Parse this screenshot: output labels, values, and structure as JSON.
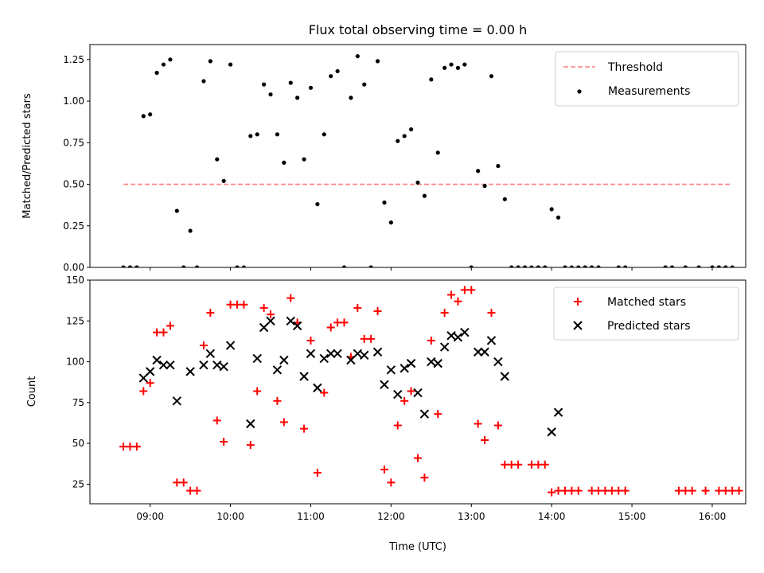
{
  "title": "Flux total observing time = 0.00 h",
  "chart_data": [
    {
      "type": "scatter",
      "title": "Flux total observing time = 0.00 h",
      "xlabel": "",
      "ylabel": "Matched/Predicted stars",
      "ylim": [
        0,
        1.34
      ],
      "yticks": [
        "0.00",
        "0.25",
        "0.50",
        "0.75",
        "1.00",
        "1.25"
      ],
      "threshold": {
        "name": "Threshold",
        "value": 0.5,
        "x_start": "08:40",
        "x_end": "16:15",
        "color": "#ff7f7f"
      },
      "legend": "top-right",
      "series": [
        {
          "name": "Measurements",
          "color": "#000000",
          "points": [
            [
              "08:40",
              0
            ],
            [
              "08:45",
              0
            ],
            [
              "08:50",
              0
            ],
            [
              "08:55",
              0.91
            ],
            [
              "09:00",
              0.92
            ],
            [
              "09:05",
              1.17
            ],
            [
              "09:10",
              1.22
            ],
            [
              "09:15",
              1.25
            ],
            [
              "09:20",
              0.34
            ],
            [
              "09:25",
              0
            ],
            [
              "09:30",
              0.22
            ],
            [
              "09:35",
              0
            ],
            [
              "09:40",
              1.12
            ],
            [
              "09:45",
              1.24
            ],
            [
              "09:50",
              0.65
            ],
            [
              "09:55",
              0.52
            ],
            [
              "10:00",
              1.22
            ],
            [
              "10:05",
              0
            ],
            [
              "10:10",
              0
            ],
            [
              "10:15",
              0.79
            ],
            [
              "10:20",
              0.8
            ],
            [
              "10:25",
              1.1
            ],
            [
              "10:30",
              1.04
            ],
            [
              "10:35",
              0.8
            ],
            [
              "10:40",
              0.63
            ],
            [
              "10:45",
              1.11
            ],
            [
              "10:50",
              1.02
            ],
            [
              "10:55",
              0.65
            ],
            [
              "11:00",
              1.08
            ],
            [
              "11:05",
              0.38
            ],
            [
              "11:10",
              0.8
            ],
            [
              "11:15",
              1.15
            ],
            [
              "11:20",
              1.18
            ],
            [
              "11:25",
              0
            ],
            [
              "11:30",
              1.02
            ],
            [
              "11:35",
              1.27
            ],
            [
              "11:40",
              1.1
            ],
            [
              "11:45",
              0
            ],
            [
              "11:50",
              1.24
            ],
            [
              "11:55",
              0.39
            ],
            [
              "12:00",
              0.27
            ],
            [
              "12:05",
              0.76
            ],
            [
              "12:10",
              0.79
            ],
            [
              "12:15",
              0.83
            ],
            [
              "12:20",
              0.51
            ],
            [
              "12:25",
              0.43
            ],
            [
              "12:30",
              1.13
            ],
            [
              "12:35",
              0.69
            ],
            [
              "12:40",
              1.2
            ],
            [
              "12:45",
              1.22
            ],
            [
              "12:50",
              1.2
            ],
            [
              "12:55",
              1.22
            ],
            [
              "13:00",
              0
            ],
            [
              "13:05",
              0.58
            ],
            [
              "13:10",
              0.49
            ],
            [
              "13:15",
              1.15
            ],
            [
              "13:20",
              0.61
            ],
            [
              "13:25",
              0.41
            ],
            [
              "13:30",
              0
            ],
            [
              "13:35",
              0
            ],
            [
              "13:40",
              0
            ],
            [
              "13:45",
              0
            ],
            [
              "13:50",
              0
            ],
            [
              "13:55",
              0
            ],
            [
              "14:00",
              0.35
            ],
            [
              "14:05",
              0.3
            ],
            [
              "14:10",
              0
            ],
            [
              "14:15",
              0
            ],
            [
              "14:20",
              0
            ],
            [
              "14:25",
              0
            ],
            [
              "14:30",
              0
            ],
            [
              "14:35",
              0
            ],
            [
              "14:50",
              0
            ],
            [
              "14:55",
              0
            ],
            [
              "15:25",
              0
            ],
            [
              "15:30",
              0
            ],
            [
              "15:40",
              0
            ],
            [
              "15:50",
              0
            ],
            [
              "16:00",
              0
            ],
            [
              "16:05",
              0
            ],
            [
              "16:10",
              0
            ],
            [
              "16:15",
              0
            ]
          ]
        }
      ]
    },
    {
      "type": "scatter",
      "xlabel": "Time (UTC)",
      "ylabel": "Count",
      "ylim": [
        13,
        150
      ],
      "yticks": [
        "25",
        "50",
        "75",
        "100",
        "125",
        "150"
      ],
      "xlim": [
        "08:15",
        "16:25"
      ],
      "xticks": [
        "09:00",
        "10:00",
        "11:00",
        "12:00",
        "13:00",
        "14:00",
        "15:00",
        "16:00"
      ],
      "legend": "top-right",
      "series": [
        {
          "name": "Matched stars",
          "color": "#ff0000",
          "marker": "plus",
          "points": [
            [
              "08:40",
              48
            ],
            [
              "08:45",
              48
            ],
            [
              "08:50",
              48
            ],
            [
              "08:55",
              82
            ],
            [
              "09:00",
              87
            ],
            [
              "09:05",
              118
            ],
            [
              "09:10",
              118
            ],
            [
              "09:15",
              122
            ],
            [
              "09:20",
              26
            ],
            [
              "09:25",
              26
            ],
            [
              "09:30",
              21
            ],
            [
              "09:35",
              21
            ],
            [
              "09:40",
              110
            ],
            [
              "09:45",
              130
            ],
            [
              "09:50",
              64
            ],
            [
              "09:55",
              51
            ],
            [
              "10:00",
              135
            ],
            [
              "10:05",
              135
            ],
            [
              "10:10",
              135
            ],
            [
              "10:15",
              49
            ],
            [
              "10:20",
              82
            ],
            [
              "10:25",
              133
            ],
            [
              "10:30",
              129
            ],
            [
              "10:35",
              76
            ],
            [
              "10:40",
              63
            ],
            [
              "10:45",
              139
            ],
            [
              "10:50",
              124
            ],
            [
              "10:55",
              59
            ],
            [
              "11:00",
              113
            ],
            [
              "11:05",
              32
            ],
            [
              "11:10",
              81
            ],
            [
              "11:15",
              121
            ],
            [
              "11:20",
              124
            ],
            [
              "11:25",
              124
            ],
            [
              "11:30",
              103
            ],
            [
              "11:35",
              133
            ],
            [
              "11:40",
              114
            ],
            [
              "11:45",
              114
            ],
            [
              "11:50",
              131
            ],
            [
              "11:55",
              34
            ],
            [
              "12:00",
              26
            ],
            [
              "12:05",
              61
            ],
            [
              "12:10",
              76
            ],
            [
              "12:15",
              82
            ],
            [
              "12:20",
              41
            ],
            [
              "12:25",
              29
            ],
            [
              "12:30",
              113
            ],
            [
              "12:35",
              68
            ],
            [
              "12:40",
              130
            ],
            [
              "12:45",
              141
            ],
            [
              "12:50",
              137
            ],
            [
              "12:55",
              144
            ],
            [
              "13:00",
              144
            ],
            [
              "13:05",
              62
            ],
            [
              "13:10",
              52
            ],
            [
              "13:15",
              130
            ],
            [
              "13:20",
              61
            ],
            [
              "13:25",
              37
            ],
            [
              "13:30",
              37
            ],
            [
              "13:35",
              37
            ],
            [
              "13:45",
              37
            ],
            [
              "13:50",
              37
            ],
            [
              "13:55",
              37
            ],
            [
              "14:00",
              20
            ],
            [
              "14:05",
              21
            ],
            [
              "14:10",
              21
            ],
            [
              "14:15",
              21
            ],
            [
              "14:20",
              21
            ],
            [
              "14:30",
              21
            ],
            [
              "14:35",
              21
            ],
            [
              "14:40",
              21
            ],
            [
              "14:45",
              21
            ],
            [
              "14:50",
              21
            ],
            [
              "14:55",
              21
            ],
            [
              "15:35",
              21
            ],
            [
              "15:40",
              21
            ],
            [
              "15:45",
              21
            ],
            [
              "15:55",
              21
            ],
            [
              "16:05",
              21
            ],
            [
              "16:10",
              21
            ],
            [
              "16:15",
              21
            ],
            [
              "16:20",
              21
            ]
          ]
        },
        {
          "name": "Predicted stars",
          "color": "#000000",
          "marker": "x",
          "points": [
            [
              "08:55",
              90
            ],
            [
              "09:00",
              94
            ],
            [
              "09:05",
              101
            ],
            [
              "09:10",
              98
            ],
            [
              "09:15",
              98
            ],
            [
              "09:20",
              76
            ],
            [
              "09:30",
              94
            ],
            [
              "09:40",
              98
            ],
            [
              "09:45",
              105
            ],
            [
              "09:50",
              98
            ],
            [
              "09:55",
              97
            ],
            [
              "10:00",
              110
            ],
            [
              "10:15",
              62
            ],
            [
              "10:20",
              102
            ],
            [
              "10:25",
              121
            ],
            [
              "10:30",
              125
            ],
            [
              "10:35",
              95
            ],
            [
              "10:40",
              101
            ],
            [
              "10:45",
              125
            ],
            [
              "10:50",
              122
            ],
            [
              "10:55",
              91
            ],
            [
              "11:00",
              105
            ],
            [
              "11:05",
              84
            ],
            [
              "11:10",
              102
            ],
            [
              "11:15",
              105
            ],
            [
              "11:20",
              105
            ],
            [
              "11:30",
              101
            ],
            [
              "11:35",
              105
            ],
            [
              "11:40",
              104
            ],
            [
              "11:50",
              106
            ],
            [
              "11:55",
              86
            ],
            [
              "12:00",
              95
            ],
            [
              "12:05",
              80
            ],
            [
              "12:10",
              96
            ],
            [
              "12:15",
              99
            ],
            [
              "12:20",
              81
            ],
            [
              "12:25",
              68
            ],
            [
              "12:30",
              100
            ],
            [
              "12:35",
              99
            ],
            [
              "12:40",
              109
            ],
            [
              "12:45",
              116
            ],
            [
              "12:50",
              115
            ],
            [
              "12:55",
              118
            ],
            [
              "13:05",
              106
            ],
            [
              "13:10",
              106
            ],
            [
              "13:15",
              113
            ],
            [
              "13:20",
              100
            ],
            [
              "13:25",
              91
            ],
            [
              "14:00",
              57
            ],
            [
              "14:05",
              69
            ]
          ]
        }
      ]
    }
  ]
}
